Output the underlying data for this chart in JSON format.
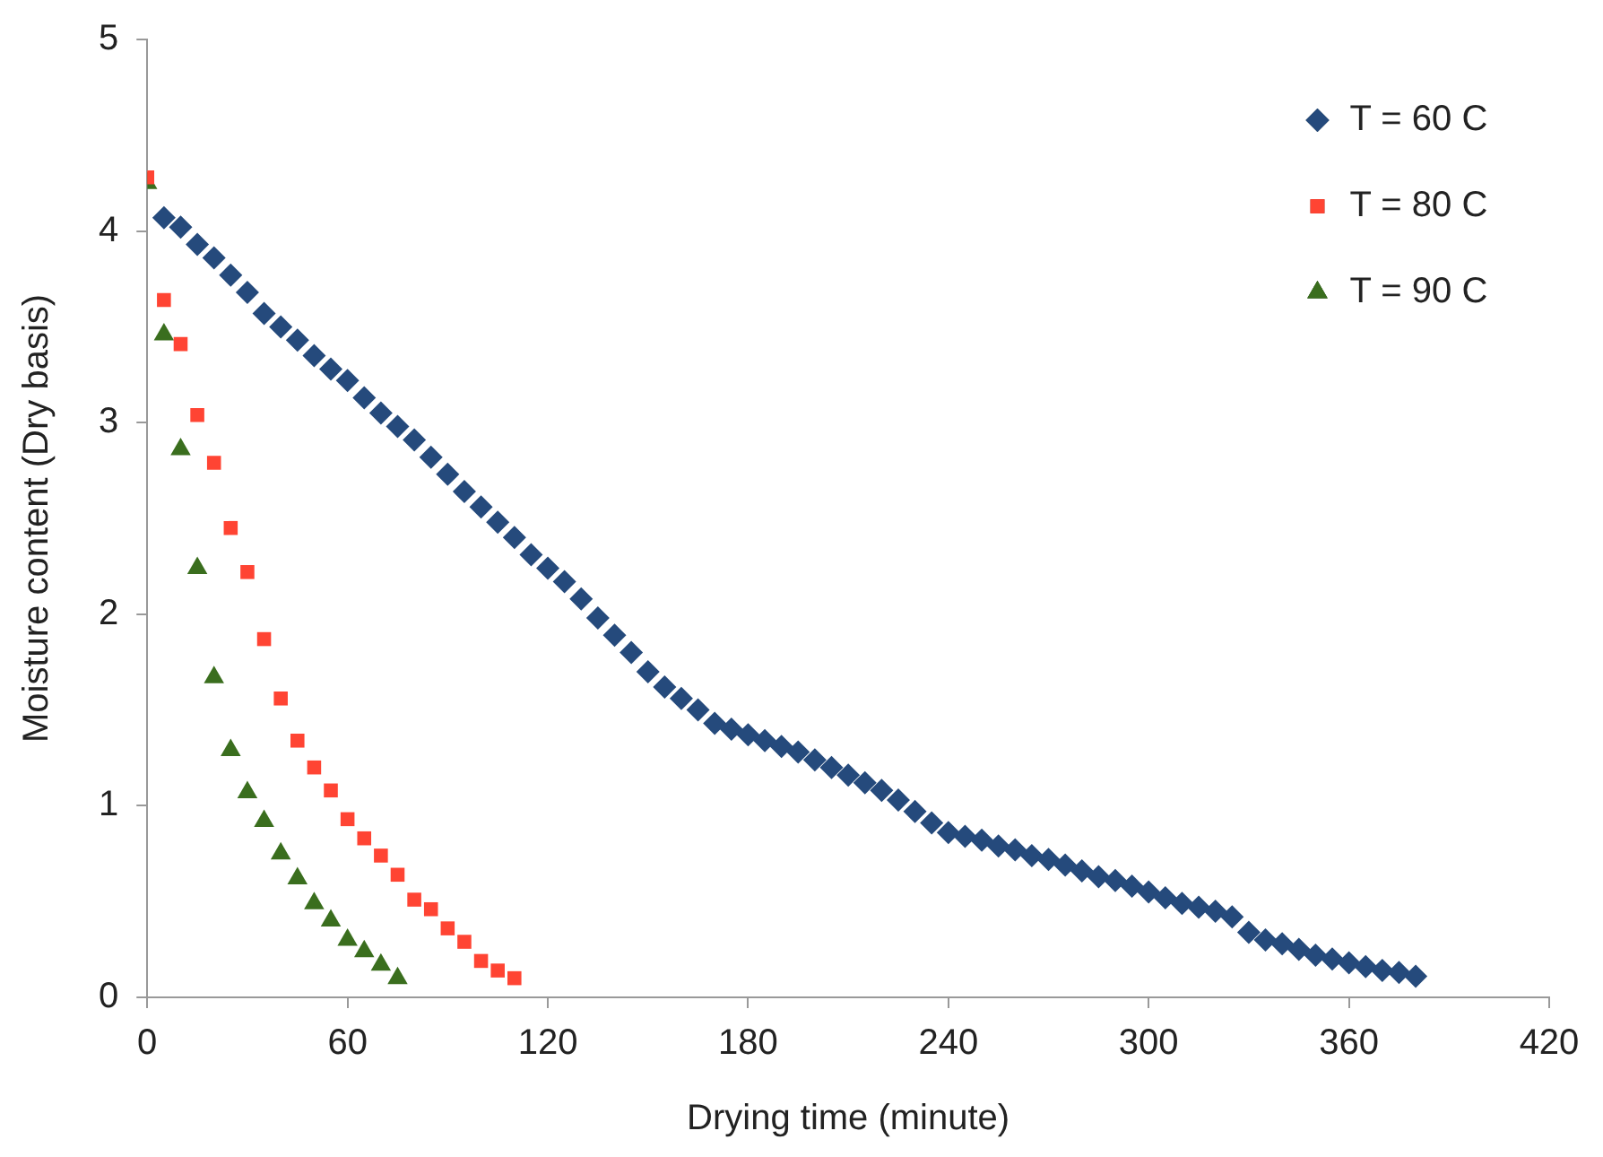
{
  "chart_data": {
    "type": "scatter",
    "xlabel": "Drying time (minute)",
    "ylabel": "Moisture content (Dry basis)",
    "xlim": [
      0,
      420
    ],
    "xticks": [
      0,
      60,
      120,
      180,
      240,
      300,
      360,
      420
    ],
    "ylim": [
      0,
      5
    ],
    "yticks": [
      0,
      1,
      2,
      3,
      4,
      5
    ],
    "grid": false,
    "legend": "top right",
    "series": [
      {
        "name": "T = 60 C",
        "color": "#254a7c",
        "marker": "diamond",
        "x": [
          5,
          10,
          15,
          20,
          25,
          30,
          35,
          40,
          45,
          50,
          55,
          60,
          65,
          70,
          75,
          80,
          85,
          90,
          95,
          100,
          105,
          110,
          115,
          120,
          125,
          130,
          135,
          140,
          145,
          150,
          155,
          160,
          165,
          170,
          175,
          180,
          185,
          190,
          195,
          200,
          205,
          210,
          215,
          220,
          225,
          230,
          235,
          240,
          245,
          250,
          255,
          260,
          265,
          270,
          275,
          280,
          285,
          290,
          295,
          300,
          305,
          310,
          315,
          320,
          325,
          330,
          335,
          340,
          345,
          350,
          355,
          360,
          365,
          370,
          375,
          380
        ],
        "values": [
          4.07,
          4.02,
          3.93,
          3.86,
          3.77,
          3.68,
          3.57,
          3.5,
          3.43,
          3.35,
          3.28,
          3.22,
          3.13,
          3.05,
          2.98,
          2.91,
          2.82,
          2.73,
          2.64,
          2.56,
          2.48,
          2.4,
          2.31,
          2.24,
          2.17,
          2.08,
          1.98,
          1.89,
          1.8,
          1.7,
          1.62,
          1.56,
          1.5,
          1.43,
          1.4,
          1.37,
          1.34,
          1.31,
          1.28,
          1.24,
          1.2,
          1.16,
          1.12,
          1.08,
          1.03,
          0.97,
          0.91,
          0.86,
          0.84,
          0.82,
          0.79,
          0.77,
          0.74,
          0.72,
          0.69,
          0.66,
          0.63,
          0.61,
          0.58,
          0.55,
          0.52,
          0.49,
          0.47,
          0.45,
          0.42,
          0.34,
          0.3,
          0.28,
          0.25,
          0.22,
          0.2,
          0.18,
          0.16,
          0.14,
          0.13,
          0.11
        ]
      },
      {
        "name": "T = 80 C",
        "color": "#ff4433",
        "marker": "square",
        "x": [
          0,
          5,
          10,
          15,
          20,
          25,
          30,
          35,
          40,
          45,
          50,
          55,
          60,
          65,
          70,
          75,
          80,
          85,
          90,
          95,
          100,
          105,
          110
        ],
        "values": [
          4.28,
          3.64,
          3.41,
          3.04,
          2.79,
          2.45,
          2.22,
          1.87,
          1.56,
          1.34,
          1.2,
          1.08,
          0.93,
          0.83,
          0.74,
          0.64,
          0.51,
          0.46,
          0.36,
          0.29,
          0.19,
          0.14,
          0.1
        ]
      },
      {
        "name": "T = 90 C",
        "color": "#3a6e1e",
        "marker": "triangle",
        "x": [
          0,
          5,
          10,
          15,
          20,
          25,
          30,
          35,
          40,
          45,
          50,
          55,
          60,
          65,
          70,
          75
        ],
        "values": [
          4.25,
          3.46,
          2.86,
          2.24,
          1.67,
          1.29,
          1.07,
          0.92,
          0.75,
          0.62,
          0.49,
          0.4,
          0.3,
          0.24,
          0.17,
          0.1
        ]
      }
    ]
  }
}
